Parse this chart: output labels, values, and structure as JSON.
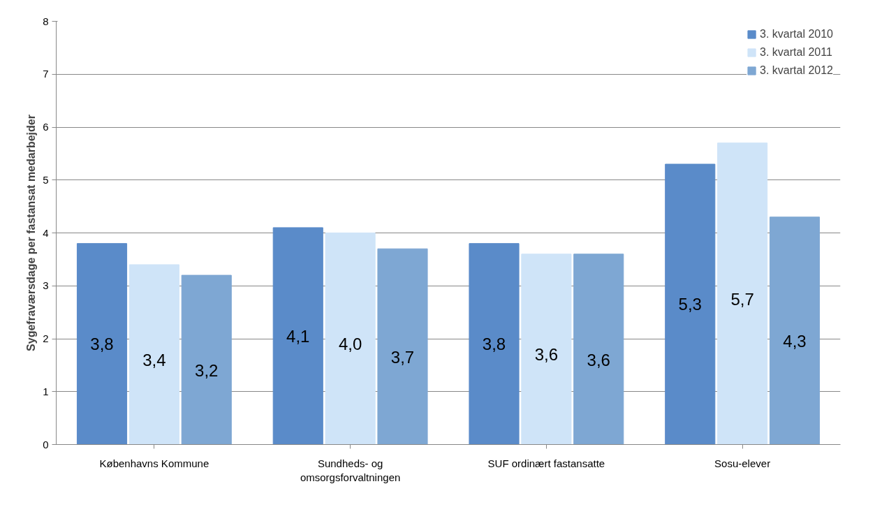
{
  "chart_data": {
    "type": "bar",
    "ylabel": "Sygefraværsdage per fastansat medarbejder",
    "categories": [
      "Københavns Kommune",
      "Sundheds- og\nomsorgsforvaltningen",
      "SUF ordinært fastansatte",
      "Sosu-elever"
    ],
    "series": [
      {
        "name": "3. kvartal 2010",
        "color": "#5a8bc9",
        "values": [
          3.8,
          4.1,
          3.8,
          5.3
        ],
        "value_labels": [
          "3,8",
          "4,1",
          "3,8",
          "5,3"
        ]
      },
      {
        "name": "3. kvartal 2011",
        "color": "#cfe4f8",
        "values": [
          3.4,
          4.0,
          3.6,
          5.7
        ],
        "value_labels": [
          "3,4",
          "4,0",
          "3,6",
          "5,7"
        ]
      },
      {
        "name": "3. kvartal 2012",
        "color": "#7ea7d3",
        "values": [
          3.2,
          3.7,
          3.6,
          4.3
        ],
        "value_labels": [
          "3,2",
          "3,7",
          "3,6",
          "4,3"
        ]
      }
    ],
    "ylim": [
      0,
      8
    ],
    "yticks": [
      0,
      1,
      2,
      3,
      4,
      5,
      6,
      7,
      8
    ],
    "grid": "y",
    "legend": "top right"
  }
}
